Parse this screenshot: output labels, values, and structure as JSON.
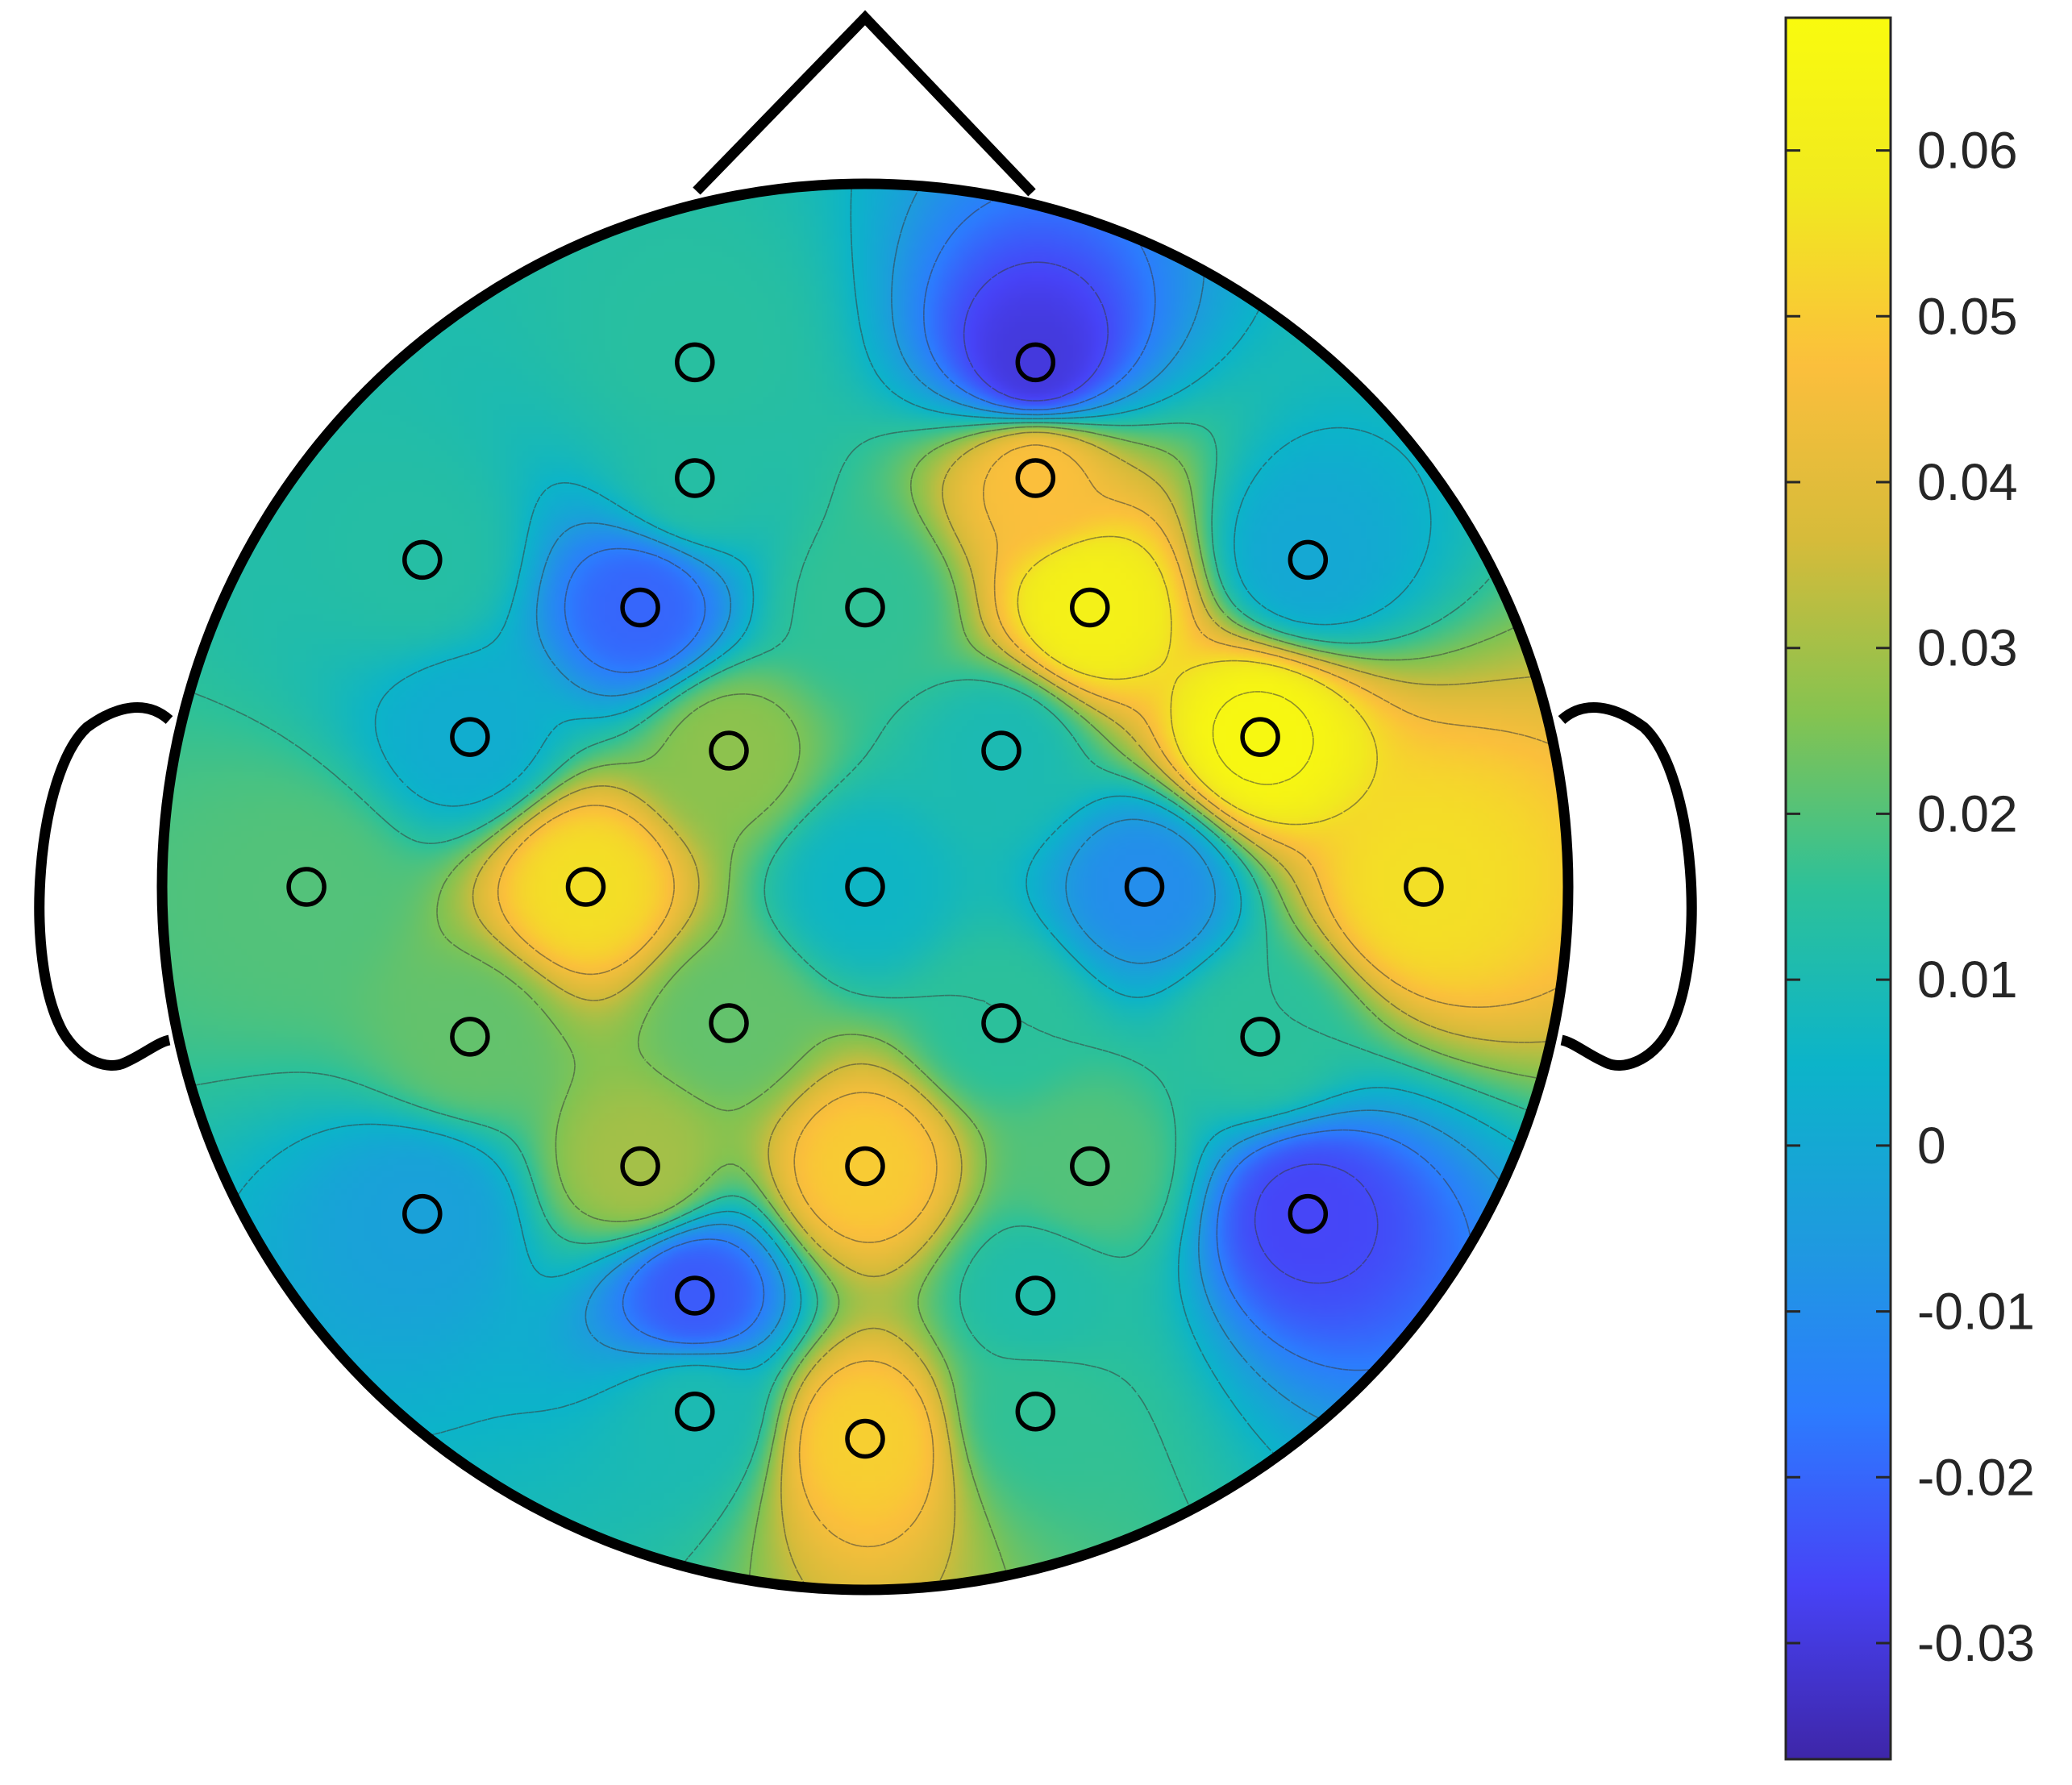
{
  "chart_data": {
    "type": "heatmap",
    "subtype": "eeg-topographic-map",
    "title": "",
    "colormap": "parula",
    "grid": false,
    "contour_lines": true,
    "colorbar": {
      "placement": "right",
      "range": [
        -0.037,
        0.068
      ],
      "ticks": [
        -0.03,
        -0.02,
        -0.01,
        0,
        0.01,
        0.02,
        0.03,
        0.04,
        0.05,
        0.06
      ],
      "tick_labels": [
        "-0.03",
        "-0.02",
        "-0.01",
        "0",
        "0.01",
        "0.02",
        "0.03",
        "0.04",
        "0.05",
        "0.06"
      ]
    },
    "electrodes": [
      {
        "x": -0.25,
        "y": 0.77,
        "value": 0.014
      },
      {
        "x": 0.25,
        "y": 0.77,
        "value": -0.03
      },
      {
        "x": -0.25,
        "y": 0.6,
        "value": 0.013
      },
      {
        "x": 0.25,
        "y": 0.6,
        "value": 0.047
      },
      {
        "x": -0.65,
        "y": 0.48,
        "value": 0.013
      },
      {
        "x": -0.33,
        "y": 0.41,
        "value": -0.02
      },
      {
        "x": 0.0,
        "y": 0.41,
        "value": 0.016
      },
      {
        "x": 0.33,
        "y": 0.41,
        "value": 0.062
      },
      {
        "x": 0.65,
        "y": 0.48,
        "value": 0.0
      },
      {
        "x": -0.58,
        "y": 0.22,
        "value": 0.002
      },
      {
        "x": -0.2,
        "y": 0.2,
        "value": 0.027
      },
      {
        "x": 0.2,
        "y": 0.2,
        "value": 0.01
      },
      {
        "x": 0.58,
        "y": 0.22,
        "value": 0.066
      },
      {
        "x": -0.82,
        "y": 0.0,
        "value": 0.02
      },
      {
        "x": -0.41,
        "y": 0.0,
        "value": 0.055
      },
      {
        "x": 0.0,
        "y": 0.0,
        "value": 0.006
      },
      {
        "x": 0.41,
        "y": 0.0,
        "value": -0.01
      },
      {
        "x": 0.82,
        "y": 0.0,
        "value": 0.055
      },
      {
        "x": -0.58,
        "y": -0.22,
        "value": 0.022
      },
      {
        "x": -0.2,
        "y": -0.2,
        "value": 0.022
      },
      {
        "x": 0.2,
        "y": -0.2,
        "value": 0.015
      },
      {
        "x": 0.58,
        "y": -0.22,
        "value": 0.015
      },
      {
        "x": -0.33,
        "y": -0.41,
        "value": 0.03
      },
      {
        "x": 0.0,
        "y": -0.41,
        "value": 0.05
      },
      {
        "x": 0.33,
        "y": -0.41,
        "value": 0.02
      },
      {
        "x": -0.65,
        "y": -0.48,
        "value": -0.003
      },
      {
        "x": 0.65,
        "y": -0.48,
        "value": -0.026
      },
      {
        "x": -0.25,
        "y": -0.6,
        "value": -0.022
      },
      {
        "x": 0.25,
        "y": -0.6,
        "value": 0.012
      },
      {
        "x": -0.25,
        "y": -0.77,
        "value": 0.01
      },
      {
        "x": 0.0,
        "y": -0.81,
        "value": 0.051
      },
      {
        "x": 0.25,
        "y": -0.77,
        "value": 0.016
      }
    ]
  },
  "colors": {
    "parula": [
      "#3e26a8",
      "#4743f7",
      "#2c7cfe",
      "#1e9bde",
      "#0cb4c9",
      "#2dc199",
      "#85c350",
      "#d6bb3a",
      "#fbbf3c",
      "#f1e91f",
      "#f9fb0e"
    ],
    "outline": "#000000",
    "tick_text": "#262626"
  }
}
